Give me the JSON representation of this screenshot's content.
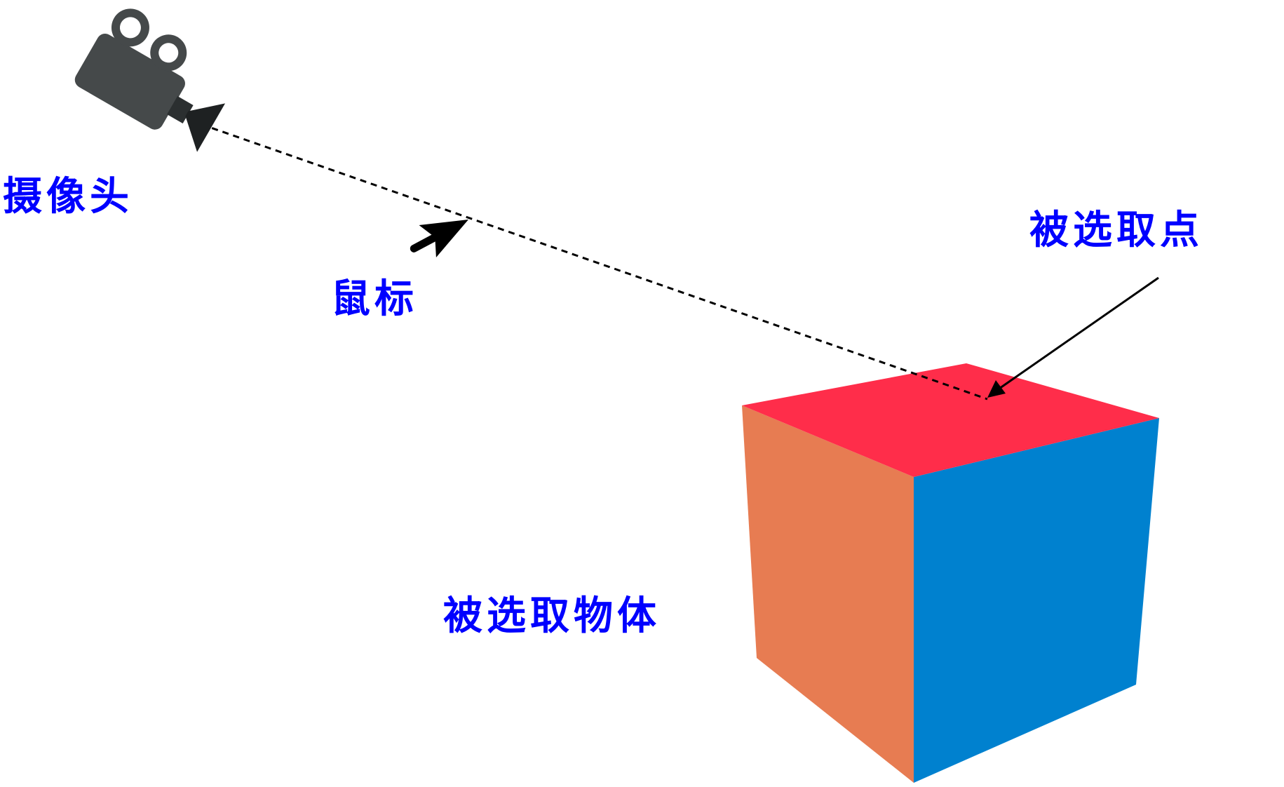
{
  "labels": {
    "camera": "摄像头",
    "mouse": "鼠标",
    "picked_point": "被选取点",
    "picked_object": "被选取物体"
  },
  "icons": {
    "camera": "movie-camera-icon",
    "mouse": "mouse-cursor-arrow-icon"
  },
  "colors": {
    "label_text": "#0000ff",
    "cube_top": "#ff2d4a",
    "cube_left": "#e77c52",
    "cube_right": "#0081cf",
    "camera_body": "#45494a",
    "ray": "#000000"
  }
}
